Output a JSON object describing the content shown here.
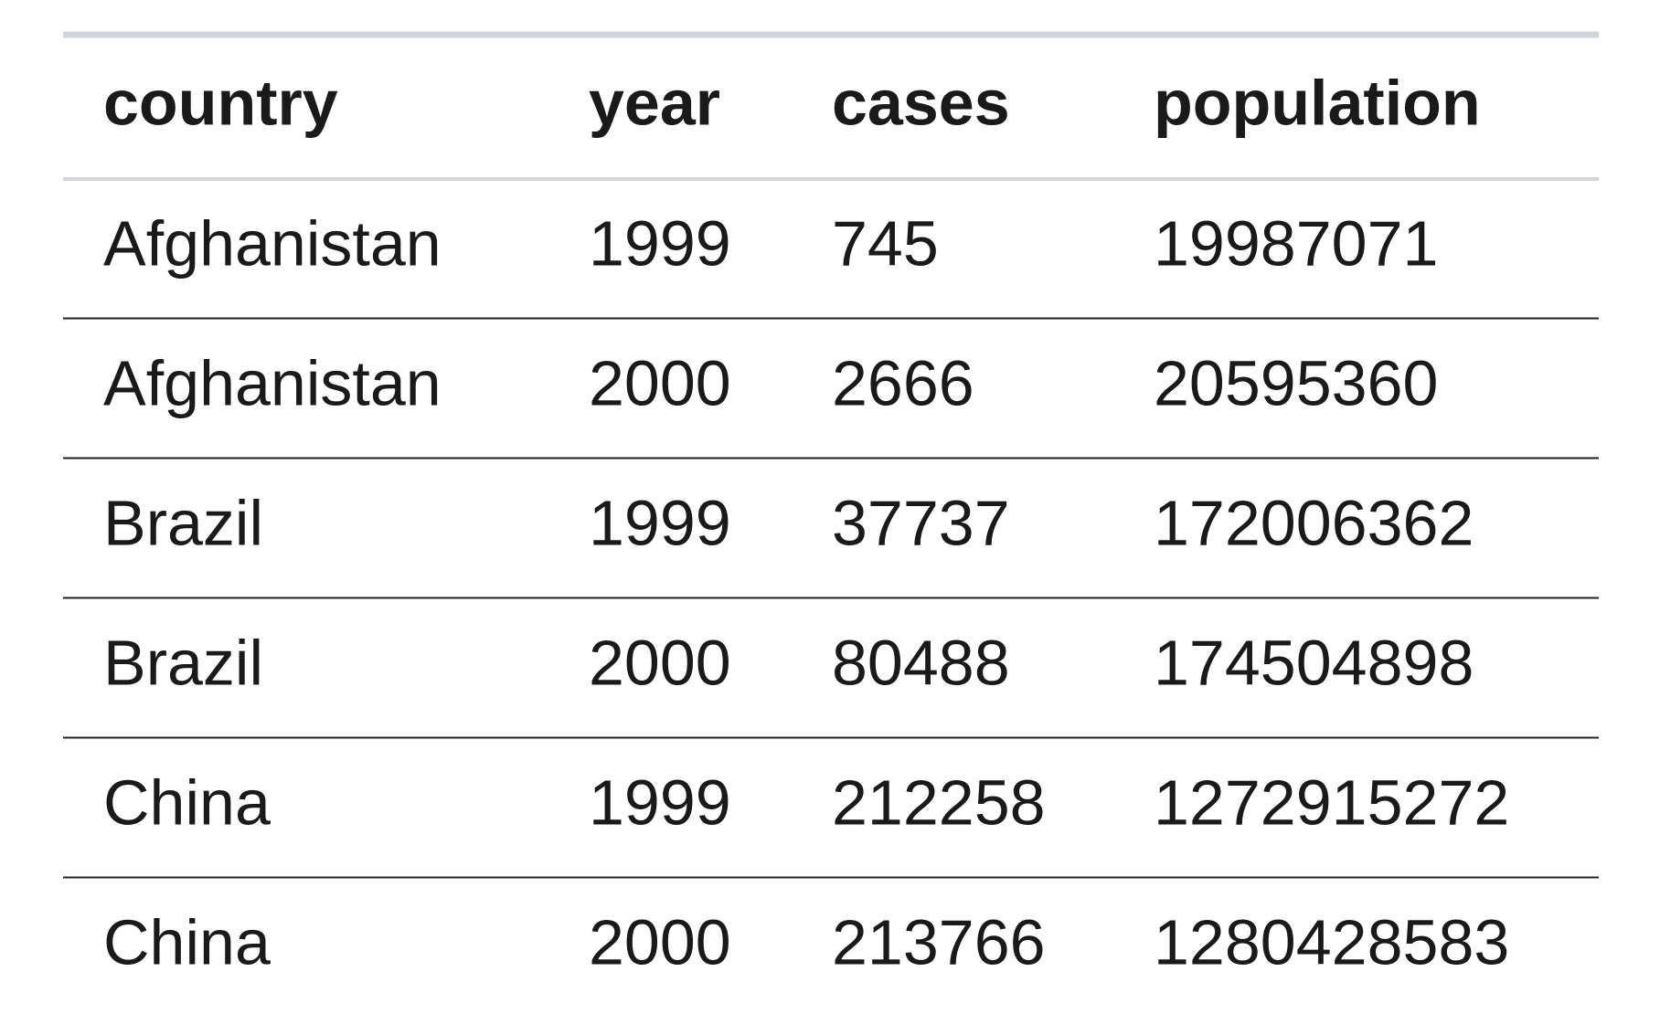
{
  "table": {
    "columns": [
      "country",
      "year",
      "cases",
      "population"
    ],
    "rows": [
      [
        "Afghanistan",
        1999,
        745,
        19987071
      ],
      [
        "Afghanistan",
        2000,
        2666,
        20595360
      ],
      [
        "Brazil",
        1999,
        37737,
        172006362
      ],
      [
        "Brazil",
        2000,
        80488,
        174504898
      ],
      [
        "China",
        1999,
        212258,
        1272915272
      ],
      [
        "China",
        2000,
        213766,
        1280428583
      ]
    ]
  }
}
